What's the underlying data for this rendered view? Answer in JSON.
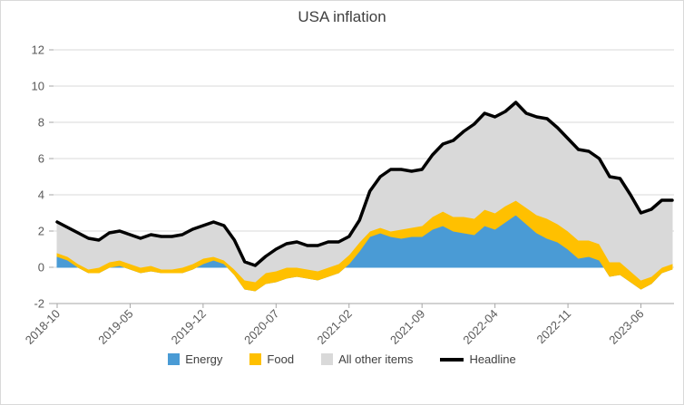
{
  "title": "USA inflation",
  "chart_data": {
    "type": "area",
    "stacked": true,
    "title": "USA inflation",
    "xlabel": "",
    "ylabel": "",
    "ylim": [
      -2,
      12
    ],
    "y_ticks": [
      -2,
      0,
      2,
      4,
      6,
      8,
      10,
      12
    ],
    "grid": true,
    "legend_position": "bottom",
    "x_visible_tick_interval": 7,
    "x": [
      "2018-10",
      "2018-11",
      "2018-12",
      "2019-01",
      "2019-02",
      "2019-03",
      "2019-04",
      "2019-05",
      "2019-06",
      "2019-07",
      "2019-08",
      "2019-09",
      "2019-10",
      "2019-11",
      "2019-12",
      "2020-01",
      "2020-02",
      "2020-03",
      "2020-04",
      "2020-05",
      "2020-06",
      "2020-07",
      "2020-08",
      "2020-09",
      "2020-10",
      "2020-11",
      "2020-12",
      "2021-01",
      "2021-02",
      "2021-03",
      "2021-04",
      "2021-05",
      "2021-06",
      "2021-07",
      "2021-08",
      "2021-09",
      "2021-10",
      "2021-11",
      "2021-12",
      "2022-01",
      "2022-02",
      "2022-03",
      "2022-04",
      "2022-05",
      "2022-06",
      "2022-07",
      "2022-08",
      "2022-09",
      "2022-10",
      "2022-11",
      "2022-12",
      "2023-01",
      "2023-02",
      "2023-03",
      "2023-04",
      "2023-05",
      "2023-06",
      "2023-07",
      "2023-08",
      "2023-09"
    ],
    "series": [
      {
        "name": "Energy",
        "render": "stacked-area",
        "color": "#4A9BD5",
        "values": [
          0.6,
          0.4,
          0.0,
          -0.3,
          -0.3,
          0.0,
          0.1,
          -0.1,
          -0.3,
          -0.2,
          -0.3,
          -0.3,
          -0.3,
          -0.1,
          0.2,
          0.4,
          0.2,
          -0.4,
          -1.2,
          -1.3,
          -0.9,
          -0.8,
          -0.6,
          -0.5,
          -0.6,
          -0.7,
          -0.5,
          -0.3,
          0.2,
          0.9,
          1.7,
          1.9,
          1.7,
          1.6,
          1.7,
          1.7,
          2.1,
          2.3,
          2.0,
          1.9,
          1.8,
          2.3,
          2.1,
          2.5,
          2.9,
          2.4,
          1.9,
          1.6,
          1.4,
          1.0,
          0.5,
          0.6,
          0.4,
          -0.5,
          -0.4,
          -0.8,
          -1.2,
          -0.9,
          -0.3,
          -0.1
        ]
      },
      {
        "name": "Food",
        "render": "stacked-area",
        "color": "#FFC000",
        "values": [
          0.2,
          0.2,
          0.2,
          0.2,
          0.3,
          0.3,
          0.3,
          0.3,
          0.3,
          0.3,
          0.2,
          0.2,
          0.3,
          0.3,
          0.3,
          0.2,
          0.2,
          0.3,
          0.5,
          0.5,
          0.6,
          0.6,
          0.6,
          0.5,
          0.5,
          0.5,
          0.5,
          0.5,
          0.5,
          0.5,
          0.3,
          0.3,
          0.3,
          0.5,
          0.5,
          0.6,
          0.7,
          0.8,
          0.8,
          0.9,
          0.9,
          0.9,
          0.9,
          0.9,
          0.8,
          0.9,
          1.0,
          1.1,
          1.0,
          1.0,
          1.0,
          0.9,
          0.9,
          0.8,
          0.7,
          0.6,
          0.5,
          0.4,
          0.3,
          0.3
        ]
      },
      {
        "name": "All other items",
        "render": "stacked-area",
        "color": "#D9D9D9",
        "values": [
          1.7,
          1.6,
          1.7,
          1.7,
          1.5,
          1.6,
          1.6,
          1.6,
          1.6,
          1.7,
          1.8,
          1.8,
          1.8,
          1.9,
          1.8,
          1.9,
          1.9,
          1.6,
          1.0,
          0.9,
          0.9,
          1.2,
          1.3,
          1.4,
          1.3,
          1.4,
          1.4,
          1.2,
          1.0,
          1.2,
          2.2,
          2.8,
          3.4,
          3.3,
          3.1,
          3.1,
          3.4,
          3.7,
          4.2,
          4.7,
          5.2,
          5.3,
          5.3,
          5.2,
          5.4,
          5.2,
          5.4,
          5.5,
          5.3,
          5.1,
          5.0,
          4.9,
          4.7,
          4.7,
          4.6,
          4.2,
          3.7,
          3.7,
          3.7,
          3.5
        ]
      },
      {
        "name": "Headline",
        "render": "line",
        "color": "#000000",
        "values": [
          2.5,
          2.2,
          1.9,
          1.6,
          1.5,
          1.9,
          2.0,
          1.8,
          1.6,
          1.8,
          1.7,
          1.7,
          1.8,
          2.1,
          2.3,
          2.5,
          2.3,
          1.5,
          0.3,
          0.1,
          0.6,
          1.0,
          1.3,
          1.4,
          1.2,
          1.2,
          1.4,
          1.4,
          1.7,
          2.6,
          4.2,
          5.0,
          5.4,
          5.4,
          5.3,
          5.4,
          6.2,
          6.8,
          7.0,
          7.5,
          7.9,
          8.5,
          8.3,
          8.6,
          9.1,
          8.5,
          8.3,
          8.2,
          7.7,
          7.1,
          6.5,
          6.4,
          6.0,
          5.0,
          4.9,
          4.0,
          3.0,
          3.2,
          3.7,
          3.7
        ]
      }
    ],
    "colors": {
      "gridline": "#D9D9D9",
      "axis_line": "#A6A6A6",
      "axis_text": "#595959",
      "title_text": "#404040"
    }
  }
}
